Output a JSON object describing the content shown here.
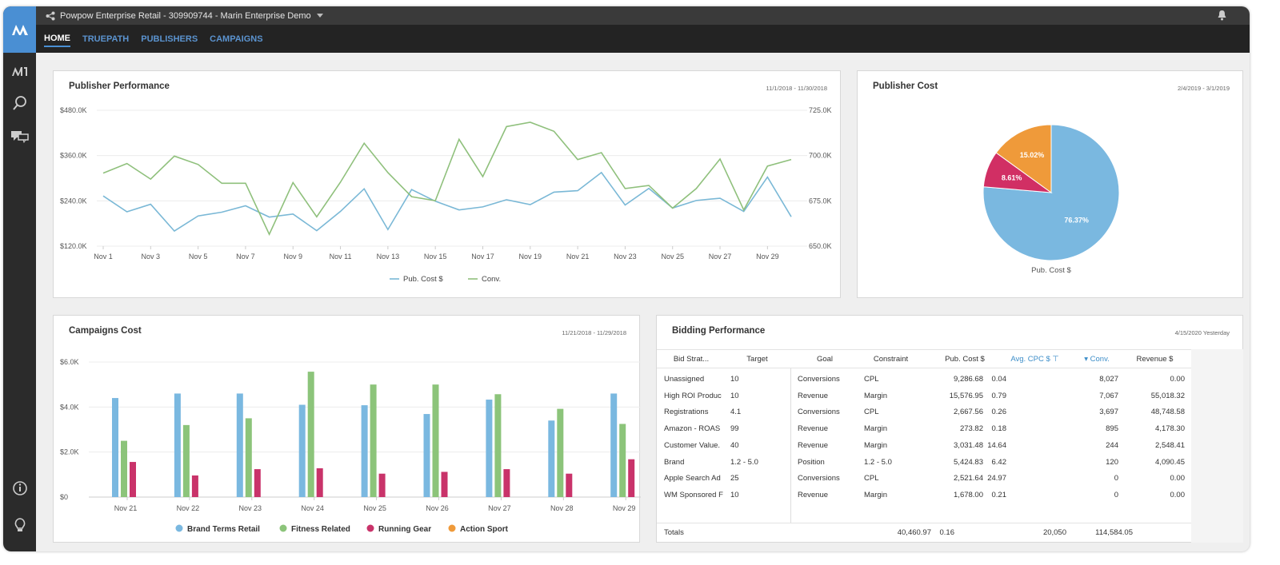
{
  "app": {
    "title": "Powpow Enterprise Retail - 309909744 - Marin Enterprise Demo"
  },
  "nav": {
    "tabs": [
      {
        "label": "HOME",
        "active": true
      },
      {
        "label": "TRUEPATH"
      },
      {
        "label": "PUBLISHERS"
      },
      {
        "label": "CAMPAIGNS"
      }
    ]
  },
  "sidebar": {
    "icons": [
      "marin-logo-icon",
      "search-icon",
      "chat-icon",
      "info-icon",
      "lightbulb-icon"
    ]
  },
  "colors": {
    "accent": "#4a8fd3",
    "blue": "#7ab8e0",
    "green": "#8cc47a",
    "red": "#d12f64",
    "orange": "#ef9a3a"
  },
  "publisher_performance": {
    "title": "Publisher Performance",
    "date_range": "11/1/2018 - 11/30/2018"
  },
  "publisher_cost": {
    "title": "Publisher Cost",
    "date_range": "2/4/2019 - 3/1/2019"
  },
  "campaigns_cost": {
    "title": "Campaigns Cost",
    "date_range": "11/21/2018 - 11/29/2018"
  },
  "bidding": {
    "title": "Bidding Performance",
    "date_range": "4/15/2020 Yesterday",
    "columns": [
      "Bid Strat...",
      "Target",
      "Goal",
      "Constraint",
      "Pub. Cost $",
      "Avg. CPC $",
      "Conv.",
      "Revenue $"
    ],
    "sorted_columns": [
      "Avg. CPC $",
      "Conv."
    ],
    "rows": [
      [
        "Unassigned",
        "10",
        "Conversions",
        "CPL",
        "9,286.68",
        "0.04",
        "8,027",
        "0.00"
      ],
      [
        "High ROI Produc",
        "10",
        "Revenue",
        "Margin",
        "15,576.95",
        "0.79",
        "7,067",
        "55,018.32"
      ],
      [
        "Registrations",
        "4.1",
        "Conversions",
        "CPL",
        "2,667.56",
        "0.26",
        "3,697",
        "48,748.58"
      ],
      [
        "Amazon - ROAS",
        "99",
        "Revenue",
        "Margin",
        "273.82",
        "0.18",
        "895",
        "4,178.30"
      ],
      [
        "Customer Value.",
        "40",
        "Revenue",
        "Margin",
        "3,031.48",
        "14.64",
        "244",
        "2,548.41"
      ],
      [
        "Brand",
        "1.2 - 5.0",
        "Position",
        "1.2 - 5.0",
        "5,424.83",
        "6.42",
        "120",
        "4,090.45"
      ],
      [
        "Apple Search Ad",
        "25",
        "Conversions",
        "CPL",
        "2,521.64",
        "24.97",
        "0",
        "0.00"
      ],
      [
        "WM Sponsored F",
        "10",
        "Revenue",
        "Margin",
        "1,678.00",
        "0.21",
        "0",
        "0.00"
      ]
    ],
    "totals": {
      "label": "Totals",
      "pub_cost": "40,460.97",
      "avg_cpc": "0.16",
      "conv": "20,050",
      "revenue": "114,584.05"
    }
  },
  "chart_data": [
    {
      "type": "line",
      "title": "Publisher Performance",
      "x": [
        "Nov 1",
        "Nov 2",
        "Nov 3",
        "Nov 4",
        "Nov 5",
        "Nov 6",
        "Nov 7",
        "Nov 8",
        "Nov 9",
        "Nov 10",
        "Nov 11",
        "Nov 12",
        "Nov 13",
        "Nov 14",
        "Nov 15",
        "Nov 16",
        "Nov 17",
        "Nov 18",
        "Nov 19",
        "Nov 20",
        "Nov 21",
        "Nov 22",
        "Nov 23",
        "Nov 24",
        "Nov 25",
        "Nov 26",
        "Nov 27",
        "Nov 28",
        "Nov 29",
        "Nov 30"
      ],
      "x_tick_labels": [
        "Nov 1",
        "Nov 3",
        "Nov 5",
        "Nov 7",
        "Nov 9",
        "Nov 11",
        "Nov 13",
        "Nov 15",
        "Nov 17",
        "Nov 19",
        "Nov 21",
        "Nov 23",
        "Nov 25",
        "Nov 27",
        "Nov 29"
      ],
      "y_left": {
        "ylim": [
          120,
          480
        ],
        "ticks": [
          "$120.0K",
          "$240.0K",
          "$360.0K",
          "$480.0K"
        ],
        "tick_values": [
          120,
          240,
          360,
          480
        ]
      },
      "y_right": {
        "ylim": [
          650,
          725
        ],
        "ticks": [
          "650.0K",
          "675.0K",
          "700.0K",
          "725.0K"
        ],
        "tick_values": [
          650,
          675,
          700,
          725
        ]
      },
      "grid": true,
      "legend": "bottom",
      "series": [
        {
          "name": "Pub. Cost $",
          "axis": "left",
          "color": "#7ab8d6",
          "values": [
            253,
            211,
            231,
            160,
            200,
            210,
            227,
            197,
            205,
            161,
            212,
            272,
            164,
            270,
            239,
            216,
            224,
            243,
            230,
            263,
            267,
            315,
            229,
            273,
            221,
            241,
            247,
            212,
            303,
            198
          ]
        },
        {
          "name": "Conv.",
          "axis": "right",
          "color": "#8fc07c",
          "values": [
            690.3,
            695.6,
            687.0,
            699.7,
            695.1,
            684.7,
            684.7,
            656.5,
            685.1,
            666.2,
            685.3,
            706.8,
            690.6,
            677.3,
            675.1,
            709.0,
            688.4,
            716.0,
            718.4,
            713.4,
            697.8,
            701.6,
            681.8,
            683.5,
            671.0,
            681.8,
            698.1,
            670.0,
            694.2,
            697.8
          ]
        }
      ]
    },
    {
      "type": "pie",
      "title": "Publisher Cost",
      "label": "Pub. Cost $",
      "slices": [
        {
          "value": 76.37,
          "label": "76.37%",
          "color": "#7ab8e0"
        },
        {
          "value": 8.61,
          "label": "8.61%",
          "color": "#d12f64"
        },
        {
          "value": 15.02,
          "label": "15.02%",
          "color": "#ef9a3a"
        }
      ]
    },
    {
      "type": "bar",
      "title": "Campaigns Cost",
      "categories": [
        "Nov 21",
        "Nov 22",
        "Nov 23",
        "Nov 24",
        "Nov 25",
        "Nov 26",
        "Nov 27",
        "Nov 28",
        "Nov 29"
      ],
      "ylim": [
        0,
        6
      ],
      "y_ticks": [
        "$0",
        "$2.0K",
        "$4.0K",
        "$6.0K"
      ],
      "y_tick_values": [
        0,
        2,
        4,
        6
      ],
      "grid": true,
      "legend": "bottom",
      "series": [
        {
          "name": "Brand Terms Retail",
          "color": "#7ab8e0",
          "values": [
            4.4,
            4.6,
            4.6,
            4.1,
            4.08,
            3.69,
            4.33,
            3.4,
            4.6
          ]
        },
        {
          "name": "Fitness Related",
          "color": "#8cc47a",
          "values": [
            2.5,
            3.2,
            3.5,
            5.57,
            5.0,
            5.0,
            4.57,
            3.92,
            3.25
          ]
        },
        {
          "name": "Running Gear",
          "color": "#c9336a",
          "values": [
            1.56,
            0.96,
            1.24,
            1.28,
            1.04,
            1.12,
            1.24,
            1.04,
            1.68
          ]
        },
        {
          "name": "Action Sport",
          "color": "#ef9a3a",
          "values": [
            0,
            0,
            0,
            0,
            0,
            0,
            0,
            0,
            0
          ]
        }
      ]
    }
  ]
}
